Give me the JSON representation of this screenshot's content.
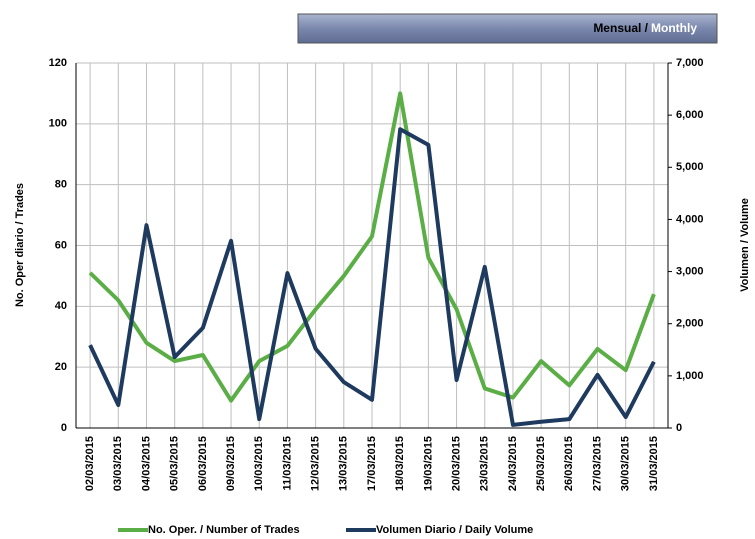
{
  "chart_data": {
    "type": "line",
    "banner": [
      "Mensual /",
      "Monthly"
    ],
    "y_label": "No. Oper diario / Trades",
    "y2_label": "Volumen / Volume",
    "categories": [
      "02/03/2015",
      "03/03/2015",
      "04/03/2015",
      "05/03/2015",
      "06/03/2015",
      "09/03/2015",
      "10/03/2015",
      "11/03/2015",
      "12/03/2015",
      "13/03/2015",
      "17/03/2015",
      "18/03/2015",
      "19/03/2015",
      "20/03/2015",
      "23/03/2015",
      "24/03/2015",
      "25/03/2015",
      "26/03/2015",
      "27/03/2015",
      "30/03/2015",
      "31/03/2015"
    ],
    "series": [
      {
        "name": "No. Oper. / Number of Trades",
        "color": "#5aae45",
        "values": [
          51,
          42,
          28,
          22,
          24,
          9,
          22,
          27,
          39,
          50,
          63,
          110,
          56,
          39,
          13,
          10,
          22,
          14,
          26,
          19,
          44
        ]
      },
      {
        "name": "Volumen Diario / Daily Volume",
        "color": "#1f3a5f",
        "axis": "y2",
        "values": [
          1590,
          440,
          3890,
          1360,
          1920,
          3590,
          170,
          2970,
          1520,
          880,
          540,
          5730,
          5430,
          920,
          3090,
          60,
          120,
          170,
          1020,
          210,
          1270
        ]
      }
    ],
    "ylim": [
      0,
      120
    ],
    "yticks": [
      0,
      20,
      40,
      60,
      80,
      100,
      120
    ],
    "y2lim": [
      0,
      7000
    ],
    "y2ticks": [
      0,
      {
        "value": 1000,
        "label": "1,000"
      },
      {
        "value": 2000,
        "label": "2,000"
      },
      {
        "value": 3000,
        "label": "3,000"
      },
      {
        "value": 4000,
        "label": "4,000"
      },
      {
        "value": 5000,
        "label": "5,000"
      },
      {
        "value": 6000,
        "label": "6,000"
      },
      {
        "value": 7000,
        "label": "7,000"
      }
    ],
    "grid": true
  }
}
